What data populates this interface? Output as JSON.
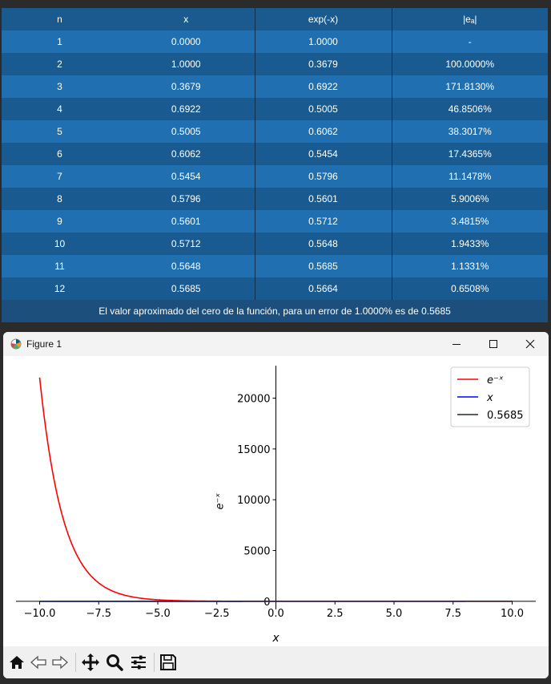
{
  "table": {
    "headers": [
      "n",
      "x",
      "exp(-x)",
      "|eₐ|"
    ],
    "rows": [
      [
        "1",
        "0.0000",
        "1.0000",
        "-"
      ],
      [
        "2",
        "1.0000",
        "0.3679",
        "100.0000%"
      ],
      [
        "3",
        "0.3679",
        "0.6922",
        "171.8130%"
      ],
      [
        "4",
        "0.6922",
        "0.5005",
        "46.8506%"
      ],
      [
        "5",
        "0.5005",
        "0.6062",
        "38.3017%"
      ],
      [
        "6",
        "0.6062",
        "0.5454",
        "17.4365%"
      ],
      [
        "7",
        "0.5454",
        "0.5796",
        "11.1478%"
      ],
      [
        "8",
        "0.5796",
        "0.5601",
        "5.9006%"
      ],
      [
        "9",
        "0.5601",
        "0.5712",
        "3.4815%"
      ],
      [
        "10",
        "0.5712",
        "0.5648",
        "1.9433%"
      ],
      [
        "11",
        "0.5648",
        "0.5685",
        "1.1331%"
      ],
      [
        "12",
        "0.5685",
        "0.5664",
        "0.6508%"
      ]
    ],
    "footer": "El valor aproximado del cero de la función, para un error de 1.0000% es de 0.5685"
  },
  "window": {
    "title": "Figure 1",
    "buttons": [
      "minimize-icon",
      "maximize-icon",
      "close-icon"
    ]
  },
  "chart_data": {
    "type": "line",
    "xlabel": "x",
    "ylabel": "e⁻ˣ",
    "xlim": [
      -11,
      11
    ],
    "ylim": [
      -800,
      23200
    ],
    "xticks": [
      -10.0,
      -7.5,
      -5.0,
      -2.5,
      0.0,
      2.5,
      5.0,
      7.5,
      10.0
    ],
    "xtick_labels": [
      "−10.0",
      "−7.5",
      "−5.0",
      "−2.5",
      "0.0",
      "2.5",
      "5.0",
      "7.5",
      "10.0"
    ],
    "yticks": [
      0,
      5000,
      10000,
      15000,
      20000
    ],
    "ytick_labels": [
      "0",
      "5000",
      "10000",
      "15000",
      "20000"
    ],
    "grid": false,
    "legend_position": "top-right",
    "series": [
      {
        "name": "e⁻ˣ",
        "function": "exp(-x)",
        "x_range": [
          -10,
          10
        ],
        "color": "#ff0000"
      },
      {
        "name": "x",
        "function": "x",
        "x_range": [
          -10,
          10
        ],
        "color": "#0000ff"
      },
      {
        "name": "0.5685",
        "constant": 0,
        "x_range": [
          -10,
          10
        ],
        "color": "#222a33"
      }
    ],
    "legend": [
      "e⁻ˣ",
      "x",
      "0.5685"
    ]
  },
  "toolbar": {
    "icons": [
      "home-icon",
      "back-icon",
      "forward-icon",
      "pan-icon",
      "zoom-icon",
      "configure-subplots-icon",
      "save-icon"
    ]
  }
}
